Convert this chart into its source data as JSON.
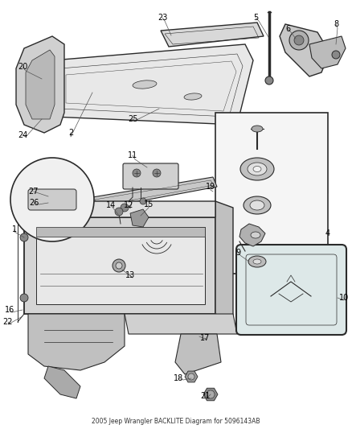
{
  "title": "2005 Jeep Wrangler BACKLITE Diagram for 5096143AB",
  "bg_color": "#ffffff",
  "line_color": "#2a2a2a",
  "label_color": "#000000",
  "fig_width": 4.38,
  "fig_height": 5.33,
  "dpi": 100
}
